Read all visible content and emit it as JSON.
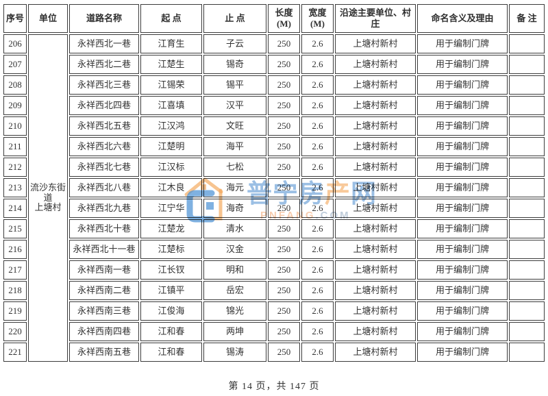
{
  "table": {
    "columns": [
      "序号",
      "单位",
      "道路名称",
      "起  点",
      "止  点",
      "长度\n(M)",
      "宽度\n(M)",
      "沿途主要单位、村庄",
      "命名含义及理由",
      "备  注"
    ],
    "unit_cell": "流沙东街道\n上塘村",
    "rows": [
      {
        "no": "206",
        "road": "永祥西北一巷",
        "start": "江育生",
        "end": "子云",
        "length": "250",
        "width": "2.6",
        "along": "上塘村新村",
        "reason": "用于编制门牌",
        "remark": ""
      },
      {
        "no": "207",
        "road": "永祥西北二巷",
        "start": "江楚生",
        "end": "锡奇",
        "length": "250",
        "width": "2.6",
        "along": "上塘村新村",
        "reason": "用于编制门牌",
        "remark": ""
      },
      {
        "no": "208",
        "road": "永祥西北三巷",
        "start": "江锡荣",
        "end": "锡平",
        "length": "250",
        "width": "2.6",
        "along": "上塘村新村",
        "reason": "用于编制门牌",
        "remark": ""
      },
      {
        "no": "209",
        "road": "永祥西北四巷",
        "start": "江喜填",
        "end": "汉平",
        "length": "250",
        "width": "2.6",
        "along": "上塘村新村",
        "reason": "用于编制门牌",
        "remark": ""
      },
      {
        "no": "210",
        "road": "永祥西北五巷",
        "start": "江汉鸿",
        "end": "文旺",
        "length": "250",
        "width": "2.6",
        "along": "上塘村新村",
        "reason": "用于编制门牌",
        "remark": ""
      },
      {
        "no": "211",
        "road": "永祥西北六巷",
        "start": "江楚明",
        "end": "海平",
        "length": "250",
        "width": "2.6",
        "along": "上塘村新村",
        "reason": "用于编制门牌",
        "remark": ""
      },
      {
        "no": "212",
        "road": "永祥西北七巷",
        "start": "江汉标",
        "end": "七松",
        "length": "250",
        "width": "2.6",
        "along": "上塘村新村",
        "reason": "用于编制门牌",
        "remark": ""
      },
      {
        "no": "213",
        "road": "永祥西北八巷",
        "start": "江木良",
        "end": "海元",
        "length": "250",
        "width": "2.6",
        "along": "上塘村新村",
        "reason": "用于编制门牌",
        "remark": ""
      },
      {
        "no": "214",
        "road": "永祥西北九巷",
        "start": "江宁华",
        "end": "海奇",
        "length": "250",
        "width": "2.6",
        "along": "上塘村新村",
        "reason": "用于编制门牌",
        "remark": ""
      },
      {
        "no": "215",
        "road": "永祥西北十巷",
        "start": "江楚龙",
        "end": "清水",
        "length": "250",
        "width": "2.6",
        "along": "上塘村新村",
        "reason": "用于编制门牌",
        "remark": ""
      },
      {
        "no": "216",
        "road": "永祥西北十一巷",
        "start": "江楚标",
        "end": "汉金",
        "length": "250",
        "width": "2.6",
        "along": "上塘村新村",
        "reason": "用于编制门牌",
        "remark": ""
      },
      {
        "no": "217",
        "road": "永祥西南一巷",
        "start": "江长钗",
        "end": "明和",
        "length": "250",
        "width": "2.6",
        "along": "上塘村新村",
        "reason": "用于编制门牌",
        "remark": ""
      },
      {
        "no": "218",
        "road": "永祥西南二巷",
        "start": "江镇平",
        "end": "岳宏",
        "length": "250",
        "width": "2.6",
        "along": "上塘村新村",
        "reason": "用于编制门牌",
        "remark": ""
      },
      {
        "no": "219",
        "road": "永祥西南三巷",
        "start": "江俊海",
        "end": "锦光",
        "length": "250",
        "width": "2.6",
        "along": "上塘村新村",
        "reason": "用于编制门牌",
        "remark": ""
      },
      {
        "no": "220",
        "road": "永祥西南四巷",
        "start": "江和春",
        "end": "两坤",
        "length": "250",
        "width": "2.6",
        "along": "上塘村新村",
        "reason": "用于编制门牌",
        "remark": ""
      },
      {
        "no": "221",
        "road": "永祥西南五巷",
        "start": "江和春",
        "end": "锡涛",
        "length": "250",
        "width": "2.6",
        "along": "上塘村新村",
        "reason": "用于编制门牌",
        "remark": ""
      }
    ]
  },
  "watermark": {
    "logo": "pnfang-house-logo",
    "title_parts": [
      "普宁房",
      "产",
      "网"
    ],
    "domain_parts": [
      "PNFANG",
      ".COM"
    ],
    "colors": {
      "blue": "#5894d2",
      "orange": "#f3a85c"
    }
  },
  "footer": {
    "text": "第 14 页，共 147 页"
  }
}
